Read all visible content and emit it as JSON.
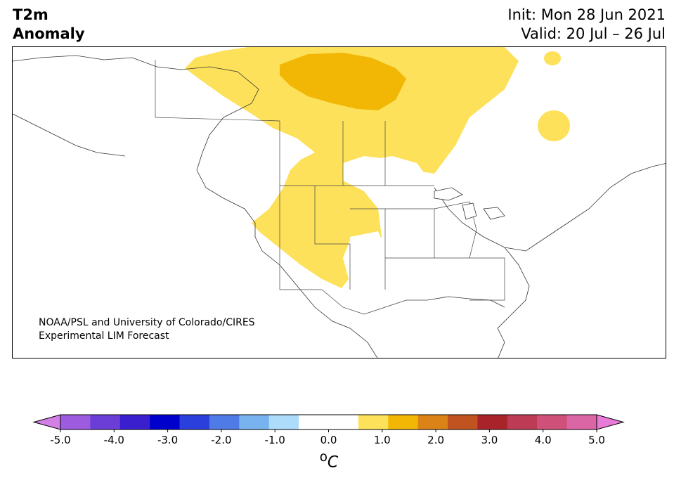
{
  "title": {
    "left_line1": "T2m",
    "left_line2": "Anomaly",
    "right_line1": "Init: Mon 28 Jun 2021",
    "right_line2": "Valid: 20 Jul – 26 Jul"
  },
  "credit": {
    "line1": "NOAA/PSL and University of Colorado/CIRES",
    "line2": "Experimental LIM Forecast"
  },
  "colorbar": {
    "unit_base": "o",
    "unit_letter": "C",
    "tick_labels": [
      "-5.0",
      "-4.0",
      "-3.0",
      "-2.0",
      "-1.0",
      "0.0",
      "1.0",
      "2.0",
      "3.0",
      "4.0",
      "5.0"
    ],
    "colors": {
      "under": "#d27fe6",
      "bins": [
        "#9d5ce0",
        "#6b3ed8",
        "#3a1fcf",
        "#0000cd",
        "#2a3fdc",
        "#4f7be6",
        "#79b3ef",
        "#acdcfa",
        "#ffffff",
        "#ffffff",
        "#fde15a",
        "#f2b705",
        "#db8317",
        "#c15320",
        "#a8232a",
        "#bd3b54",
        "#cf5078",
        "#db66a6"
      ],
      "over": "#e87ad8"
    }
  },
  "map": {
    "anomaly_colors": {
      "light": "#fde15a",
      "medium": "#f2b705"
    }
  }
}
